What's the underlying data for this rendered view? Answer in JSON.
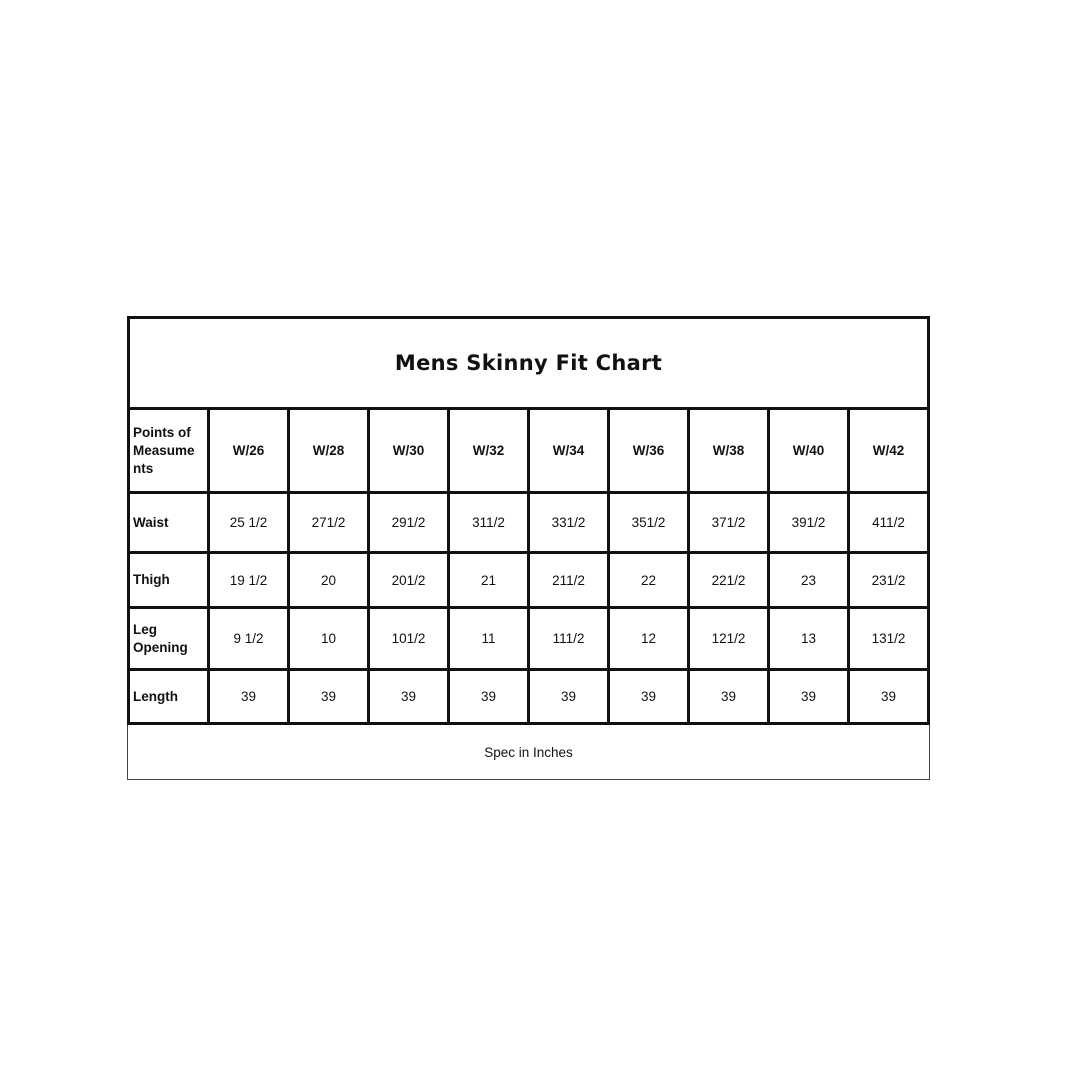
{
  "title": "Mens Skinny Fit Chart",
  "header": {
    "label": "Points of Measume nts",
    "sizes": [
      "W/26",
      "W/28",
      "W/30",
      "W/32",
      "W/34",
      "W/36",
      "W/38",
      "W/40",
      "W/42"
    ]
  },
  "rows": [
    {
      "label": "Waist",
      "values": [
        "25 1/2",
        "271/2",
        "291/2",
        "311/2",
        "331/2",
        "351/2",
        "371/2",
        "391/2",
        "411/2"
      ]
    },
    {
      "label": "Thigh",
      "values": [
        "19 1/2",
        "20",
        "201/2",
        "21",
        "211/2",
        "22",
        "221/2",
        "23",
        "231/2"
      ]
    },
    {
      "label": "Leg Opening",
      "values": [
        "9 1/2",
        "10",
        "101/2",
        "11",
        "111/2",
        "12",
        "121/2",
        "13",
        "131/2"
      ]
    },
    {
      "label": "Length",
      "values": [
        "39",
        "39",
        "39",
        "39",
        "39",
        "39",
        "39",
        "39",
        "39"
      ]
    }
  ],
  "footer": "Spec in Inches"
}
